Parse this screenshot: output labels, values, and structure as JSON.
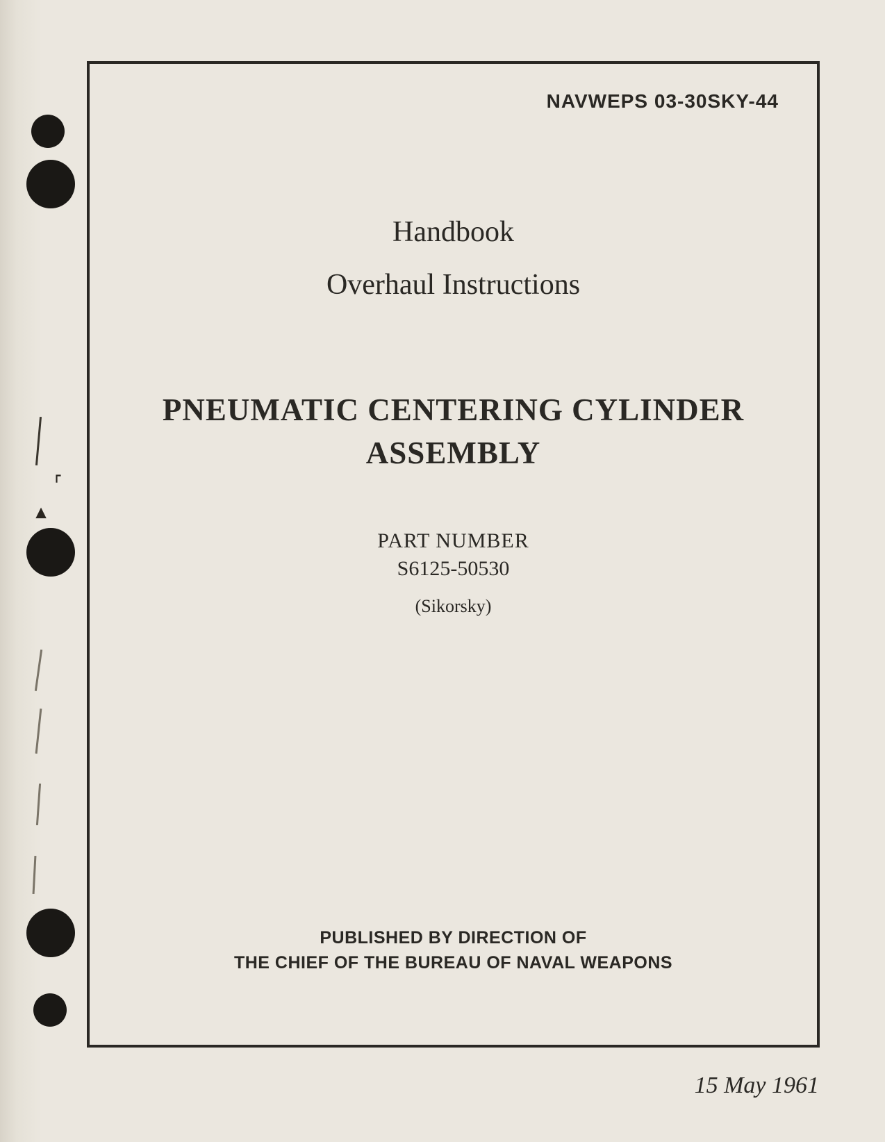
{
  "document": {
    "number": "NAVWEPS 03-30SKY-44",
    "heading_line1": "Handbook",
    "heading_line2": "Overhaul Instructions",
    "title_line1": "PNEUMATIC CENTERING CYLINDER",
    "title_line2": "ASSEMBLY",
    "part_label": "PART NUMBER",
    "part_number": "S6125-50530",
    "manufacturer": "(Sikorsky)",
    "publisher_line1": "PUBLISHED BY DIRECTION OF",
    "publisher_line2": "THE CHIEF OF THE BUREAU OF NAVAL WEAPONS",
    "date": "15 May 1961"
  },
  "style": {
    "page_bg": "#ebe7df",
    "text_color": "#2a2824",
    "frame_color": "#2a2824",
    "frame_width": 4,
    "hole_color": "#1a1815",
    "doc_number_fontsize": 28,
    "heading_fontsize": 42,
    "title_fontsize": 45,
    "part_fontsize": 30,
    "manufacturer_fontsize": 26,
    "publisher_fontsize": 25,
    "date_fontsize": 34
  }
}
